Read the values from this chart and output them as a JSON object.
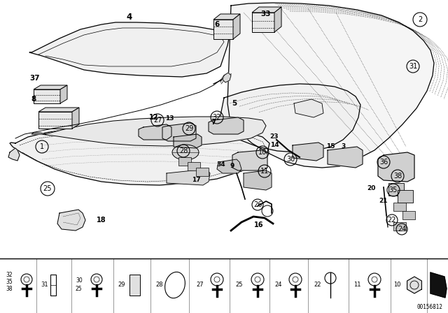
{
  "bg_color": "#ffffff",
  "fig_width": 6.4,
  "fig_height": 4.48,
  "diagram_id": "00156812",
  "line_color": "#000000",
  "text_color": "#000000",
  "lw_main": 0.9,
  "lw_thin": 0.5,
  "lw_dot": 0.4
}
